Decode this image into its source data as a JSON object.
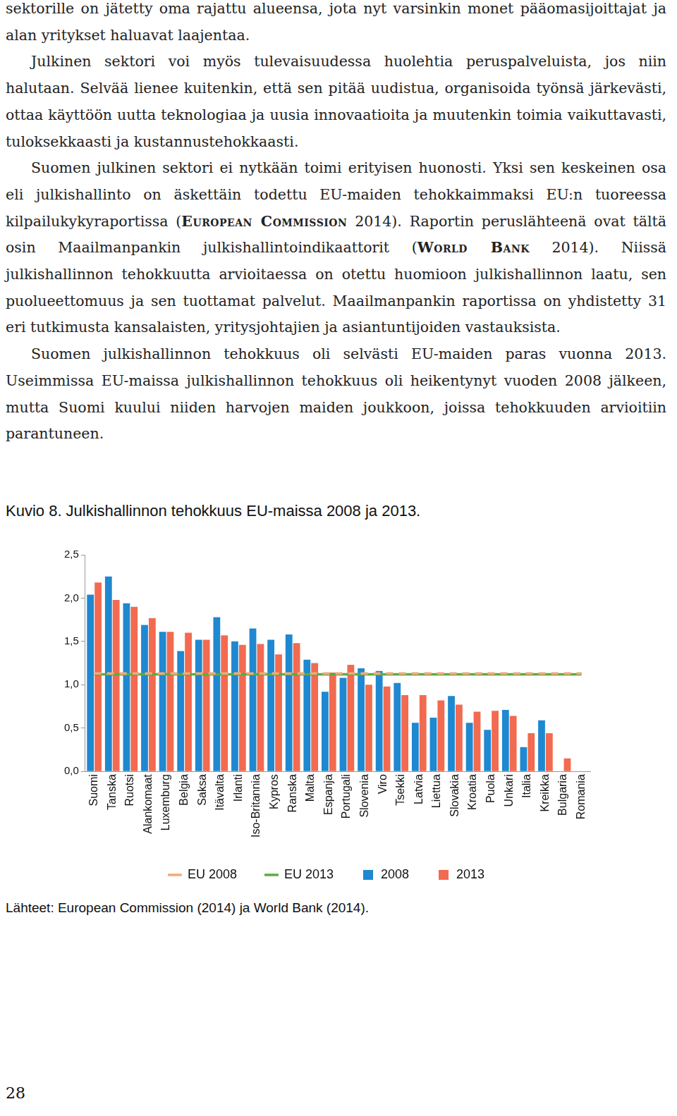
{
  "paragraphs": [
    [
      {
        "text": "sektorille on jätetty oma rajattu alueensa, jota nyt varsinkin monet pääomasijoittajat ja alan yritykset haluavat laajentaa.",
        "style": "plain"
      }
    ],
    [
      {
        "text": "Julkinen sektori voi myös tulevaisuudessa huolehtia peruspalveluista, jos niin halutaan. Selvää lienee kuitenkin, että sen pitää uudistua, organisoida työnsä järkevästi, ottaa käyttöön uutta teknologiaa ja uusia innovaatioita ja muutenkin toimia vaikuttavasti, tuloksekkaasti ja kustannustehokkaasti.",
        "style": "plain"
      }
    ],
    [
      {
        "text": "Suomen julkinen sektori ei nytkään toimi erityisen huonosti. Yksi sen keskeinen osa eli julkishallinto on äskettäin todettu EU-maiden tehokkaimmaksi EU:n tuoreessa kilpailukykyraportissa (",
        "style": "plain"
      },
      {
        "text": "European Commission",
        "style": "smallcaps"
      },
      {
        "text": " 2014). Raportin peruslähteenä ovat tältä osin Maailmanpankin julkishallintoindikaattorit (",
        "style": "plain"
      },
      {
        "text": "World Bank",
        "style": "smallcaps"
      },
      {
        "text": " 2014). Niissä julkishallinnon tehokkuutta arvioitaessa on otettu huomioon julkishallinnon laatu, sen puolueettomuus ja sen tuottamat palvelut. Maailmanpankin raportissa on yhdistetty 31 eri tutkimusta kansalaisten, yritysjohtajien ja asiantuntijoiden vastauksista.",
        "style": "plain"
      }
    ],
    [
      {
        "text": "Suomen julkishallinnon tehokkuus oli selvästi EU-maiden paras vuonna 2013. Useimmissa EU-maissa julkishallinnon tehokkuus oli heikentynyt vuoden 2008 jälkeen, mutta Suomi kuului niiden harvojen maiden joukkoon, joissa tehokkuuden arvioitiin parantuneen.",
        "style": "plain"
      }
    ]
  ],
  "chart_data": {
    "type": "bar",
    "title": "Kuvio 8. Julkishallinnon tehokkuus EU-maissa 2008 ja 2013.",
    "categories": [
      "Suomi",
      "Tanska",
      "Ruotsi",
      "Alankomaat",
      "Luxemburg",
      "Belgia",
      "Saksa",
      "Itävalta",
      "Irlanti",
      "Iso-Britannia",
      "Kypros",
      "Ranska",
      "Malta",
      "Espanja",
      "Portugali",
      "Slovenia",
      "Viro",
      "Tsekki",
      "Latvia",
      "Liettua",
      "Slovakia",
      "Kroatia",
      "Puola",
      "Unkari",
      "Italia",
      "Kreikka",
      "Bulgaria",
      "Romania"
    ],
    "series": [
      {
        "name": "2008",
        "type": "bar",
        "color": "#1e88d0",
        "values": [
          2.04,
          2.25,
          1.94,
          1.69,
          1.61,
          1.39,
          1.52,
          1.78,
          1.5,
          1.65,
          1.52,
          1.58,
          1.29,
          0.92,
          1.08,
          1.19,
          1.16,
          1.02,
          0.56,
          0.62,
          0.87,
          0.56,
          0.48,
          0.71,
          0.28,
          0.59,
          null,
          null
        ]
      },
      {
        "name": "2013",
        "type": "bar",
        "color": "#f26a4f",
        "values": [
          2.18,
          1.98,
          1.9,
          1.77,
          1.61,
          1.6,
          1.52,
          1.57,
          1.46,
          1.47,
          1.35,
          1.48,
          1.25,
          1.14,
          1.23,
          1.0,
          0.98,
          0.88,
          0.88,
          0.82,
          0.77,
          0.69,
          0.7,
          0.64,
          0.44,
          0.44,
          0.15,
          null
        ]
      },
      {
        "name": "EU 2008",
        "type": "line",
        "line_style": "dashed",
        "color": "#f2a97a",
        "values": [
          1.13,
          1.13,
          1.13,
          1.13,
          1.13,
          1.13,
          1.13,
          1.13,
          1.13,
          1.13,
          1.13,
          1.13,
          1.13,
          1.13,
          1.13,
          1.13,
          1.13,
          1.13,
          1.13,
          1.13,
          1.13,
          1.13,
          1.13,
          1.13,
          1.13,
          1.13,
          1.13,
          1.13
        ]
      },
      {
        "name": "EU 2013",
        "type": "line",
        "line_style": "solid",
        "color": "#5aac44",
        "values": [
          1.12,
          1.12,
          1.12,
          1.12,
          1.12,
          1.12,
          1.12,
          1.12,
          1.12,
          1.12,
          1.12,
          1.12,
          1.12,
          1.12,
          1.12,
          1.12,
          1.12,
          1.12,
          1.12,
          1.12,
          1.12,
          1.12,
          1.12,
          1.12,
          1.12,
          1.12,
          1.12,
          1.12
        ]
      }
    ],
    "ylim": [
      0,
      2.5
    ],
    "yticks": [
      {
        "value": 0,
        "label": "0,0"
      },
      {
        "value": 0.5,
        "label": "0,5"
      },
      {
        "value": 1,
        "label": "1,0"
      },
      {
        "value": 1.5,
        "label": "1,5"
      },
      {
        "value": 2,
        "label": "2,0"
      },
      {
        "value": 2.5,
        "label": "2,5"
      }
    ],
    "grid": false,
    "legend": "bottom"
  },
  "source": "Lähteet: European Commission (2014) ja World Bank (2014).",
  "page_number": "28"
}
